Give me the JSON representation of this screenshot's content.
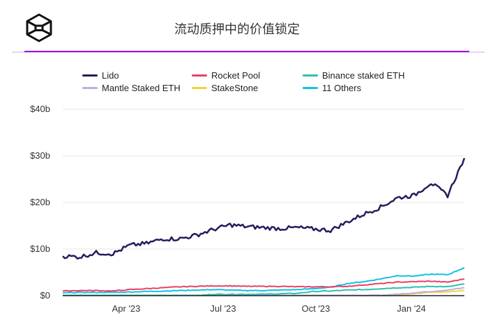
{
  "header": {
    "title": "流动质押中的价值锁定",
    "logo_icon": "hexagon-cube-logo-icon",
    "accent_color": "#a010e0"
  },
  "legend": [
    {
      "label": "Lido",
      "color": "#231d5c"
    },
    {
      "label": "Rocket Pool",
      "color": "#ea3f66"
    },
    {
      "label": "Binance staked ETH",
      "color": "#2fbfae"
    },
    {
      "label": "Mantle Staked ETH",
      "color": "#b9aee0"
    },
    {
      "label": "StakeStone",
      "color": "#f6d232"
    },
    {
      "label": "11 Others",
      "color": "#12c0e8"
    }
  ],
  "chart_data": {
    "type": "line",
    "title": "流动质押中的价值锁定",
    "xlabel": "",
    "ylabel": "",
    "ylim": [
      0,
      40
    ],
    "y_unit": "$b",
    "y_ticks": [
      "$0",
      "$10b",
      "$20b",
      "$30b",
      "$40b"
    ],
    "x_ticks": [
      "Apr '23",
      "Jul '23",
      "Oct '23",
      "Jan '24"
    ],
    "grid": true,
    "legend_position": "top",
    "x": [
      "2023-02-15",
      "2023-03-01",
      "2023-03-15",
      "2023-04-01",
      "2023-04-15",
      "2023-05-01",
      "2023-05-15",
      "2023-06-01",
      "2023-06-15",
      "2023-07-01",
      "2023-07-15",
      "2023-08-01",
      "2023-08-15",
      "2023-09-01",
      "2023-09-15",
      "2023-10-01",
      "2023-10-15",
      "2023-11-01",
      "2023-11-15",
      "2023-12-01",
      "2023-12-15",
      "2024-01-01",
      "2024-01-15",
      "2024-02-01",
      "2024-02-15"
    ],
    "series": [
      {
        "name": "Lido",
        "values": [
          8.5,
          8.3,
          9.2,
          9.0,
          10.8,
          11.2,
          12.2,
          12.2,
          13.0,
          14.2,
          15.2,
          14.8,
          14.6,
          14.4,
          14.6,
          14.3,
          14.0,
          15.8,
          17.5,
          19.0,
          21.0,
          21.5,
          24.2,
          21.5,
          29.5
        ]
      },
      {
        "name": "Rocket Pool",
        "values": [
          1.0,
          1.1,
          1.1,
          1.0,
          1.3,
          1.5,
          1.7,
          1.9,
          2.0,
          2.1,
          2.1,
          2.0,
          2.0,
          2.0,
          1.9,
          1.9,
          1.9,
          2.0,
          2.3,
          2.6,
          2.9,
          3.0,
          3.1,
          2.9,
          3.6
        ]
      },
      {
        "name": "Binance staked ETH",
        "values": [
          0,
          0,
          0,
          0,
          0,
          0,
          0,
          0,
          0,
          0.3,
          0.3,
          0.3,
          0.3,
          0.4,
          0.5,
          0.9,
          1.0,
          1.2,
          1.3,
          1.5,
          1.7,
          1.8,
          2.0,
          1.9,
          2.5
        ]
      },
      {
        "name": "Mantle Staked ETH",
        "values": [
          0,
          0,
          0,
          0,
          0,
          0,
          0,
          0,
          0,
          0,
          0,
          0,
          0,
          0,
          0,
          0,
          0,
          0,
          0,
          0.1,
          0.3,
          0.6,
          0.9,
          1.2,
          1.7
        ]
      },
      {
        "name": "StakeStone",
        "values": [
          0,
          0,
          0,
          0,
          0,
          0,
          0,
          0,
          0,
          0,
          0,
          0,
          0,
          0,
          0,
          0,
          0,
          0,
          0,
          0,
          0.1,
          0.4,
          0.7,
          0.8,
          1.1
        ]
      },
      {
        "name": "11 Others",
        "values": [
          0.6,
          0.7,
          0.7,
          0.7,
          0.8,
          0.9,
          1.0,
          1.1,
          1.2,
          1.3,
          1.2,
          1.1,
          1.1,
          1.2,
          1.3,
          1.5,
          1.8,
          2.6,
          3.0,
          3.6,
          4.3,
          4.2,
          4.6,
          4.5,
          6.0
        ]
      }
    ]
  }
}
